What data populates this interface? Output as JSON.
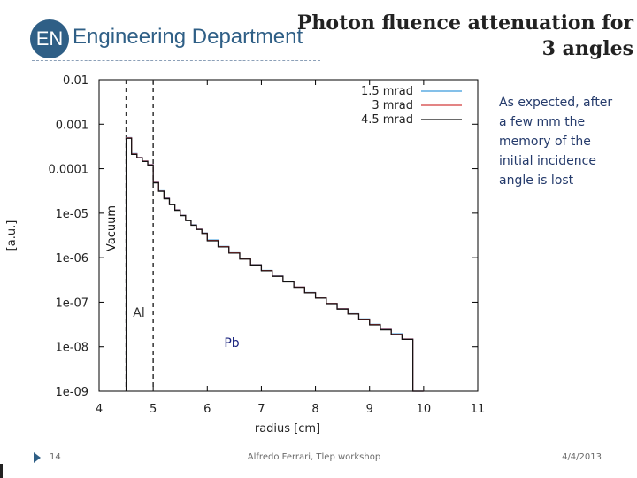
{
  "header": {
    "logo_mark": "EN",
    "logo_text": "Engineering Department",
    "title_line1": "Photon fluence attenuation for",
    "title_line2": "3 angles"
  },
  "note": "As expected, after a few mm the memory of the initial incidence angle is lost",
  "footer": {
    "page_number": "14",
    "author": "Alfredo Ferrari, Tlep workshop",
    "date": "4/4/2013"
  },
  "colors": {
    "accent": "#2f5f86",
    "series_1": "#3a9bdc",
    "series_2": "#d23a3a",
    "series_3": "#111111"
  },
  "chart_data": {
    "type": "line",
    "title": "",
    "xlabel": "radius [cm]",
    "ylabel": "[a.u.]",
    "xlim": [
      4,
      11
    ],
    "ylim": [
      1e-09,
      0.01
    ],
    "yscale": "log",
    "x_ticks": [
      "4",
      "5",
      "6",
      "7",
      "8",
      "9",
      "10",
      "11"
    ],
    "y_ticks": [
      "0.01",
      "0.001",
      "0.0001",
      "1e-05",
      "1e-06",
      "1e-07",
      "1e-08",
      "1e-09"
    ],
    "legend": [
      "1.5 mrad",
      "3 mrad",
      "4.5 mrad"
    ],
    "legend_position": "top-right",
    "annotations": [
      "Vacuum",
      "Al",
      "Pb"
    ],
    "region_boundaries": [
      4.5,
      5.0
    ],
    "series": [
      {
        "name": "1.5 mrad",
        "x": [
          4.6,
          4.7,
          4.8,
          4.9,
          5.0,
          5.1,
          5.2,
          5.3,
          5.4,
          5.5,
          5.6,
          5.7,
          5.8,
          5.9,
          6.0,
          6.2,
          6.4,
          6.6,
          6.8,
          7.0,
          7.2,
          7.4,
          7.6,
          7.8,
          8.0,
          8.2,
          8.4,
          8.6,
          8.8,
          9.0,
          9.2,
          9.4,
          9.6,
          9.8,
          10.0
        ],
        "y": [
          0.0005,
          0.00022,
          0.00018,
          0.00015,
          0.000125,
          5e-05,
          3.2e-05,
          2.2e-05,
          1.6e-05,
          1.2e-05,
          9e-06,
          7e-06,
          5.5e-06,
          4.4e-06,
          3.6e-06,
          2.5e-06,
          1.8e-06,
          1.3e-06,
          9.5e-07,
          7e-07,
          5.2e-07,
          3.9e-07,
          2.9e-07,
          2.2e-07,
          1.65e-07,
          1.25e-07,
          9.5e-08,
          7.2e-08,
          5.5e-08,
          4.2e-08,
          3.2e-08,
          2.5e-08,
          1.95e-08,
          1.5e-08,
          1e-09
        ]
      },
      {
        "name": "3 mrad",
        "x": [
          4.6,
          4.7,
          4.8,
          4.9,
          5.0,
          5.1,
          5.2,
          5.3,
          5.4,
          5.5,
          5.6,
          5.7,
          5.8,
          5.9,
          6.0,
          6.2,
          6.4,
          6.6,
          6.8,
          7.0,
          7.2,
          7.4,
          7.6,
          7.8,
          8.0,
          8.2,
          8.4,
          8.6,
          8.8,
          9.0,
          9.2,
          9.4,
          9.6,
          9.8,
          10.0
        ],
        "y": [
          0.00049,
          0.000215,
          0.000178,
          0.000148,
          0.000123,
          4.9e-05,
          3.15e-05,
          2.15e-05,
          1.58e-05,
          1.18e-05,
          8.9e-06,
          6.9e-06,
          5.4e-06,
          4.35e-06,
          3.55e-06,
          2.45e-06,
          1.78e-06,
          1.29e-06,
          9.4e-07,
          6.9e-07,
          5.15e-07,
          3.85e-07,
          2.88e-07,
          2.18e-07,
          1.63e-07,
          1.24e-07,
          9.4e-08,
          7.1e-08,
          5.45e-08,
          4.15e-08,
          3.15e-08,
          2.45e-08,
          1.9e-08,
          1.48e-08,
          1e-09
        ]
      },
      {
        "name": "4.5 mrad",
        "x": [
          4.6,
          4.7,
          4.8,
          4.9,
          5.0,
          5.1,
          5.2,
          5.3,
          5.4,
          5.5,
          5.6,
          5.7,
          5.8,
          5.9,
          6.0,
          6.2,
          6.4,
          6.6,
          6.8,
          7.0,
          7.2,
          7.4,
          7.6,
          7.8,
          8.0,
          8.2,
          8.4,
          8.6,
          8.8,
          9.0,
          9.2,
          9.4,
          9.6,
          9.8,
          10.0
        ],
        "y": [
          0.00048,
          0.00021,
          0.000175,
          0.000145,
          0.00012,
          4.8e-05,
          3.1e-05,
          2.1e-05,
          1.55e-05,
          1.16e-05,
          8.8e-06,
          6.8e-06,
          5.35e-06,
          4.3e-06,
          3.5e-06,
          2.4e-06,
          1.75e-06,
          1.27e-06,
          9.3e-07,
          6.85e-07,
          5.1e-07,
          3.8e-07,
          2.85e-07,
          2.15e-07,
          1.62e-07,
          1.23e-07,
          9.3e-08,
          7e-08,
          5.4e-08,
          4.1e-08,
          3.1e-08,
          2.4e-08,
          1.88e-08,
          1.46e-08,
          1e-09
        ]
      }
    ]
  }
}
